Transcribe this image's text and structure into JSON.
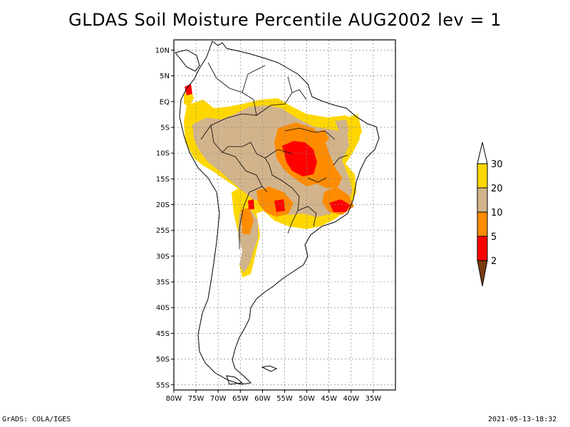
{
  "title": "GLDAS Soil Moisture Percentile AUG2002 lev = 1",
  "colors": {
    "pct_lt2": "#7a3a12",
    "pct_2_5": "#ff0000",
    "pct_5_10": "#ff8c00",
    "pct_10_20": "#d2b48c",
    "pct_20_30": "#ffd700",
    "pct_gt30": "#ffffff",
    "coast": "#000000",
    "grid": "#888888"
  },
  "chart_data": {
    "type": "heatmap",
    "variable": "Soil Moisture Percentile",
    "date": "AUG2002",
    "level": "lev = 1",
    "lon_range": [
      -80,
      -30
    ],
    "lat_range": [
      -56,
      12
    ],
    "x_ticks": [
      "80W",
      "75W",
      "70W",
      "65W",
      "60W",
      "55W",
      "50W",
      "45W",
      "40W",
      "35W"
    ],
    "y_ticks": [
      "10N",
      "5N",
      "EQ",
      "5S",
      "10S",
      "15S",
      "20S",
      "25S",
      "30S",
      "35S",
      "40S",
      "45S",
      "50S",
      "55S"
    ],
    "legend": {
      "levels": [
        "2",
        "5",
        "10",
        "20",
        "30"
      ],
      "classes": [
        {
          "range": "< 2",
          "color": "#7a3a12"
        },
        {
          "range": "2-5",
          "color": "#ff0000"
        },
        {
          "range": "5-10",
          "color": "#ff8c00"
        },
        {
          "range": "10-20",
          "color": "#d2b48c"
        },
        {
          "range": "20-30",
          "color": "#ffd700"
        },
        {
          "range": "> 30",
          "color": "#ffffff"
        }
      ]
    }
  },
  "footer": {
    "left": "GrADS: COLA/IGES",
    "right": "2021-05-13-18:32"
  }
}
